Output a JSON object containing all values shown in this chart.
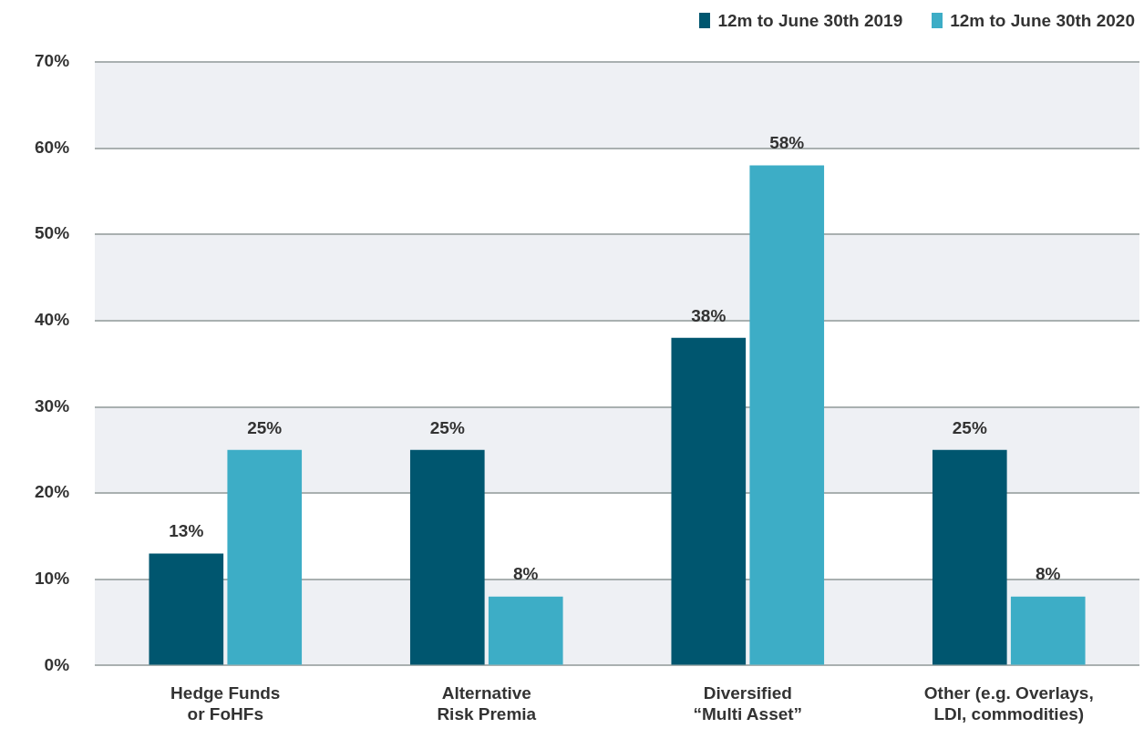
{
  "chart_data": {
    "type": "bar",
    "categories": [
      "Hedge Funds\nor FoHFs",
      "Alternative\nRisk Premia",
      "Diversified\n“Multi Asset”",
      "Other (e.g. Overlays,\nLDI, commodities)"
    ],
    "series": [
      {
        "name": "12m to June 30th 2019",
        "color": "#00566f",
        "values": [
          13,
          25,
          38,
          25
        ],
        "value_labels": [
          "13%",
          "25%",
          "38%",
          "25%"
        ]
      },
      {
        "name": "12m to June 30th 2020",
        "color": "#3dadc6",
        "values": [
          25,
          8,
          58,
          8
        ],
        "value_labels": [
          "25%",
          "8%",
          "58%",
          "8%"
        ]
      }
    ],
    "ylim": [
      0,
      70
    ],
    "yticks": [
      {
        "value": 0,
        "label": "0%"
      },
      {
        "value": 10,
        "label": "10%"
      },
      {
        "value": 20,
        "label": "20%"
      },
      {
        "value": 30,
        "label": "30%"
      },
      {
        "value": 40,
        "label": "40%"
      },
      {
        "value": 50,
        "label": "50%"
      },
      {
        "value": 60,
        "label": "60%"
      },
      {
        "value": 70,
        "label": "70%"
      }
    ],
    "bands": [
      {
        "axis": "y",
        "from": 0,
        "to": 10,
        "color": "#eef0f4"
      },
      {
        "axis": "y",
        "from": 20,
        "to": 30,
        "color": "#eef0f4"
      },
      {
        "axis": "y",
        "from": 40,
        "to": 50,
        "color": "#eef0f4"
      },
      {
        "axis": "y",
        "from": 60,
        "to": 70,
        "color": "#eef0f4"
      }
    ],
    "grid": "y",
    "legend": "top right"
  }
}
